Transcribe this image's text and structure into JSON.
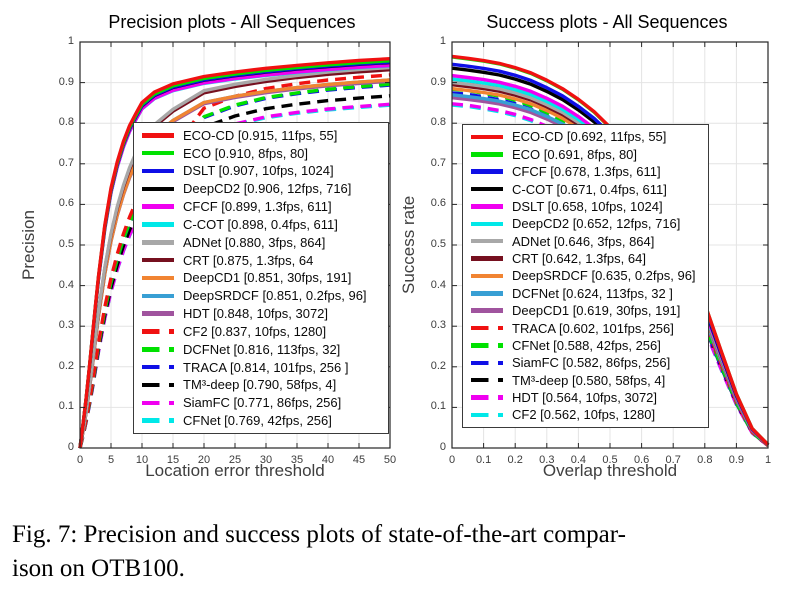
{
  "figure": {
    "caption_line1": "Fig. 7: Precision and success plots of state-of-the-art compar-",
    "caption_line2": "ison on OTB100."
  },
  "chart_data": [
    {
      "name": "precision-plot",
      "type": "line",
      "title": "Precision plots - All Sequences",
      "xlabel": "Location error threshold",
      "ylabel": "Precision",
      "xlim": [
        0,
        50
      ],
      "ylim": [
        0,
        1
      ],
      "xticks": [
        "0",
        "5",
        "10",
        "15",
        "20",
        "25",
        "30",
        "35",
        "40",
        "45",
        "50"
      ],
      "yticks": [
        "0",
        "0.1",
        "0.2",
        "0.3",
        "0.4",
        "0.5",
        "0.6",
        "0.7",
        "0.8",
        "0.9",
        "1"
      ],
      "grid": true,
      "legend_position": "center",
      "x_samples": [
        0,
        0.5,
        1,
        1.5,
        2,
        2.5,
        3,
        4,
        5,
        6,
        7,
        8,
        9,
        10,
        12,
        15,
        20,
        25,
        30,
        35,
        40,
        45,
        50
      ],
      "shape_templates": {
        "A": [
          0,
          0.065,
          0.135,
          0.215,
          0.3,
          0.385,
          0.465,
          0.6,
          0.7,
          0.77,
          0.825,
          0.868,
          0.9,
          0.93,
          0.958,
          0.98,
          1.0,
          1.012,
          1.022,
          1.03,
          1.037,
          1.043,
          1.048
        ],
        "M": [
          0,
          0.05,
          0.105,
          0.17,
          0.24,
          0.315,
          0.385,
          0.505,
          0.6,
          0.675,
          0.735,
          0.785,
          0.825,
          0.858,
          0.905,
          0.948,
          1.0,
          1.018,
          1.032,
          1.043,
          1.052,
          1.059,
          1.065
        ],
        "B": [
          0,
          0.04,
          0.085,
          0.135,
          0.19,
          0.25,
          0.31,
          0.415,
          0.5,
          0.57,
          0.63,
          0.68,
          0.722,
          0.758,
          0.815,
          0.878,
          1.0,
          1.035,
          1.058,
          1.072,
          1.083,
          1.091,
          1.098
        ]
      },
      "series": [
        {
          "name": "ECO-CD",
          "label": "ECO-CD [0.915, 11fps, 55]",
          "score": 0.915,
          "fps": "11fps",
          "param": "55",
          "color": "#f01111",
          "dash": false,
          "shape": "A"
        },
        {
          "name": "ECO",
          "label": "ECO [0.910, 8fps, 80]",
          "score": 0.91,
          "fps": "8fps",
          "param": "80",
          "color": "#00e100",
          "dash": false,
          "shape": "A"
        },
        {
          "name": "DSLT",
          "label": "DSLT [0.907, 10fps, 1024]",
          "score": 0.907,
          "fps": "10fps",
          "param": "1024",
          "color": "#0f0fe6",
          "dash": false,
          "shape": "A"
        },
        {
          "name": "DeepCD2",
          "label": "DeepCD2 [0.906, 12fps, 716]",
          "score": 0.906,
          "fps": "12fps",
          "param": "716",
          "color": "#000000",
          "dash": false,
          "shape": "A"
        },
        {
          "name": "CFCF",
          "label": "CFCF [0.899, 1.3fps, 611]",
          "score": 0.899,
          "fps": "1.3fps",
          "param": "611",
          "color": "#f000f0",
          "dash": false,
          "shape": "A"
        },
        {
          "name": "C-COT",
          "label": "C-COT [0.898, 0.4fps,  611]",
          "score": 0.898,
          "fps": "0.4fps",
          "param": "611",
          "color": "#00e8e8",
          "dash": false,
          "shape": "A"
        },
        {
          "name": "ADNet",
          "label": "ADNet [0.880, 3fps, 864]",
          "score": 0.88,
          "fps": "3fps",
          "param": "864",
          "color": "#a8a8a8",
          "dash": false,
          "shape": "M"
        },
        {
          "name": "CRT",
          "label": "CRT [0.875, 1.3fps, 64",
          "score": 0.875,
          "fps": "1.3fps",
          "param": "64",
          "color": "#76101f",
          "dash": false,
          "shape": "M"
        },
        {
          "name": "DeepCD1",
          "label": "DeepCD1 [0.851, 30fps, 191]",
          "score": 0.851,
          "fps": "30fps",
          "param": "191",
          "color": "#f18432",
          "dash": false,
          "shape": "M"
        },
        {
          "name": "DeepSRDCF",
          "label": "DeepSRDCF [0.851, 0.2fps, 96]",
          "score": 0.851,
          "fps": "0.2fps",
          "param": "96",
          "color": "#389fd4",
          "dash": false,
          "shape": "M"
        },
        {
          "name": "HDT",
          "label": "HDT [0.848, 10fps, 3072]",
          "score": 0.848,
          "fps": "10fps",
          "param": "3072",
          "color": "#a0549e",
          "dash": false,
          "shape": "M"
        },
        {
          "name": "CF2",
          "label": "CF2 [0.837, 10fps, 1280]",
          "score": 0.837,
          "fps": "10fps",
          "param": "1280",
          "color": "#f01111",
          "dash": true,
          "shape": "B"
        },
        {
          "name": "DCFNet",
          "label": "DCFNet [0.816, 113fps, 32]",
          "score": 0.816,
          "fps": "113fps",
          "param": "32",
          "color": "#00e100",
          "dash": true,
          "shape": "B"
        },
        {
          "name": "TRACA",
          "label": "TRACA [0.814, 101fps, 256 ]",
          "score": 0.814,
          "fps": "101fps",
          "param": "256",
          "color": "#0f0fe6",
          "dash": true,
          "shape": "B"
        },
        {
          "name": "TM3-deep",
          "label": "TM³-deep [0.790, 58fps, 4]",
          "score": 0.79,
          "fps": "58fps",
          "param": "4",
          "color": "#000000",
          "dash": true,
          "shape": "B"
        },
        {
          "name": "SiamFC",
          "label": "SiamFC [0.771, 86fps, 256]",
          "score": 0.771,
          "fps": "86fps",
          "param": "256",
          "color": "#f000f0",
          "dash": true,
          "shape": "B"
        },
        {
          "name": "CFNet",
          "label": "CFNet [0.769, 42fps, 256]",
          "score": 0.769,
          "fps": "42fps",
          "param": "256",
          "color": "#00e8e8",
          "dash": true,
          "shape": "B"
        }
      ]
    },
    {
      "name": "success-plot",
      "type": "line",
      "title": "Success plots - All Sequences",
      "xlabel": "Overlap threshold",
      "ylabel": "Success rate",
      "xlim": [
        0,
        1
      ],
      "ylim": [
        0,
        1
      ],
      "xticks": [
        "0",
        "0.1",
        "0.2",
        "0.3",
        "0.4",
        "0.5",
        "0.6",
        "0.7",
        "0.8",
        "0.9",
        "1"
      ],
      "yticks": [
        "0",
        "0.1",
        "0.2",
        "0.3",
        "0.4",
        "0.5",
        "0.6",
        "0.7",
        "0.8",
        "0.9",
        "1"
      ],
      "grid": true,
      "legend_position": "center",
      "x_samples": [
        0,
        0.05,
        0.1,
        0.15,
        0.2,
        0.25,
        0.3,
        0.35,
        0.4,
        0.45,
        0.5,
        0.55,
        0.6,
        0.65,
        0.7,
        0.75,
        0.8,
        0.85,
        0.9,
        0.95,
        1.0
      ],
      "shape_templates": {
        "A": [
          1.394,
          1.387,
          1.379,
          1.369,
          1.354,
          1.335,
          1.309,
          1.279,
          1.241,
          1.197,
          1.142,
          1.075,
          0.997,
          0.903,
          0.792,
          0.662,
          0.513,
          0.351,
          0.192,
          0.069,
          0.012
        ],
        "B": [
          1.503,
          1.497,
          1.486,
          1.474,
          1.457,
          1.434,
          1.405,
          1.369,
          1.324,
          1.271,
          1.207,
          1.131,
          1.041,
          0.936,
          0.814,
          0.674,
          0.517,
          0.35,
          0.19,
          0.066,
          0.01
        ]
      },
      "series": [
        {
          "name": "ECO-CD",
          "label": "ECO-CD [0.692, 11fps, 55]",
          "score": 0.692,
          "fps": "11fps",
          "param": "55",
          "color": "#f01111",
          "dash": false,
          "shape": "A"
        },
        {
          "name": "ECO",
          "label": "ECO [0.691, 8fps, 80]",
          "score": 0.691,
          "fps": "8fps",
          "param": "80",
          "color": "#00e100",
          "dash": false,
          "shape": "A"
        },
        {
          "name": "CFCF",
          "label": "CFCF [0.678, 1.3fps, 611]",
          "score": 0.678,
          "fps": "1.3fps",
          "param": "611",
          "color": "#0f0fe6",
          "dash": false,
          "shape": "A"
        },
        {
          "name": "C-COT",
          "label": "C-COT [0.671, 0.4fps, 611]",
          "score": 0.671,
          "fps": "0.4fps",
          "param": "611",
          "color": "#000000",
          "dash": false,
          "shape": "A"
        },
        {
          "name": "DSLT",
          "label": "DSLT [0.658, 10fps, 1024]",
          "score": 0.658,
          "fps": "10fps",
          "param": "1024",
          "color": "#f000f0",
          "dash": false,
          "shape": "A"
        },
        {
          "name": "DeepCD2",
          "label": "DeepCD2 [0.652, 12fps, 716]",
          "score": 0.652,
          "fps": "12fps",
          "param": "716",
          "color": "#00e8e8",
          "dash": false,
          "shape": "A"
        },
        {
          "name": "ADNet",
          "label": "ADNet [0.646, 3fps, 864]",
          "score": 0.646,
          "fps": "3fps",
          "param": "864",
          "color": "#a8a8a8",
          "dash": false,
          "shape": "A"
        },
        {
          "name": "CRT",
          "label": "CRT [0.642, 1.3fps, 64]",
          "score": 0.642,
          "fps": "1.3fps",
          "param": "64",
          "color": "#76101f",
          "dash": false,
          "shape": "A"
        },
        {
          "name": "DeepSRDCF",
          "label": "DeepSRDCF [0.635, 0.2fps, 96]",
          "score": 0.635,
          "fps": "0.2fps",
          "param": "96",
          "color": "#f18432",
          "dash": false,
          "shape": "A"
        },
        {
          "name": "DCFNet",
          "label": "DCFNet [0.624, 113fps, 32 ]",
          "score": 0.624,
          "fps": "113fps",
          "param": "32",
          "color": "#389fd4",
          "dash": false,
          "shape": "A"
        },
        {
          "name": "DeepCD1",
          "label": "DeepCD1 [0.619, 30fps, 191]",
          "score": 0.619,
          "fps": "30fps",
          "param": "191",
          "color": "#a0549e",
          "dash": false,
          "shape": "A"
        },
        {
          "name": "TRACA",
          "label": "TRACA [0.602, 101fps, 256]",
          "score": 0.602,
          "fps": "101fps",
          "param": "256",
          "color": "#f01111",
          "dash": true,
          "shape": "B"
        },
        {
          "name": "CFNet",
          "label": "CFNet [0.588, 42fps, 256]",
          "score": 0.588,
          "fps": "42fps",
          "param": "256",
          "color": "#00e100",
          "dash": true,
          "shape": "B"
        },
        {
          "name": "SiamFC",
          "label": "SiamFC [0.582, 86fps, 256]",
          "score": 0.582,
          "fps": "86fps",
          "param": "256",
          "color": "#0f0fe6",
          "dash": true,
          "shape": "B"
        },
        {
          "name": "TM3-deep",
          "label": "TM³-deep [0.580, 58fps, 4]",
          "score": 0.58,
          "fps": "58fps",
          "param": "4",
          "color": "#000000",
          "dash": true,
          "shape": "B"
        },
        {
          "name": "HDT",
          "label": "HDT [0.564, 10fps,  3072]",
          "score": 0.564,
          "fps": "10fps",
          "param": "3072",
          "color": "#f000f0",
          "dash": true,
          "shape": "B"
        },
        {
          "name": "CF2",
          "label": "CF2 [0.562, 10fps, 1280]",
          "score": 0.562,
          "fps": "10fps",
          "param": "1280",
          "color": "#00e8e8",
          "dash": true,
          "shape": "B"
        }
      ]
    }
  ]
}
